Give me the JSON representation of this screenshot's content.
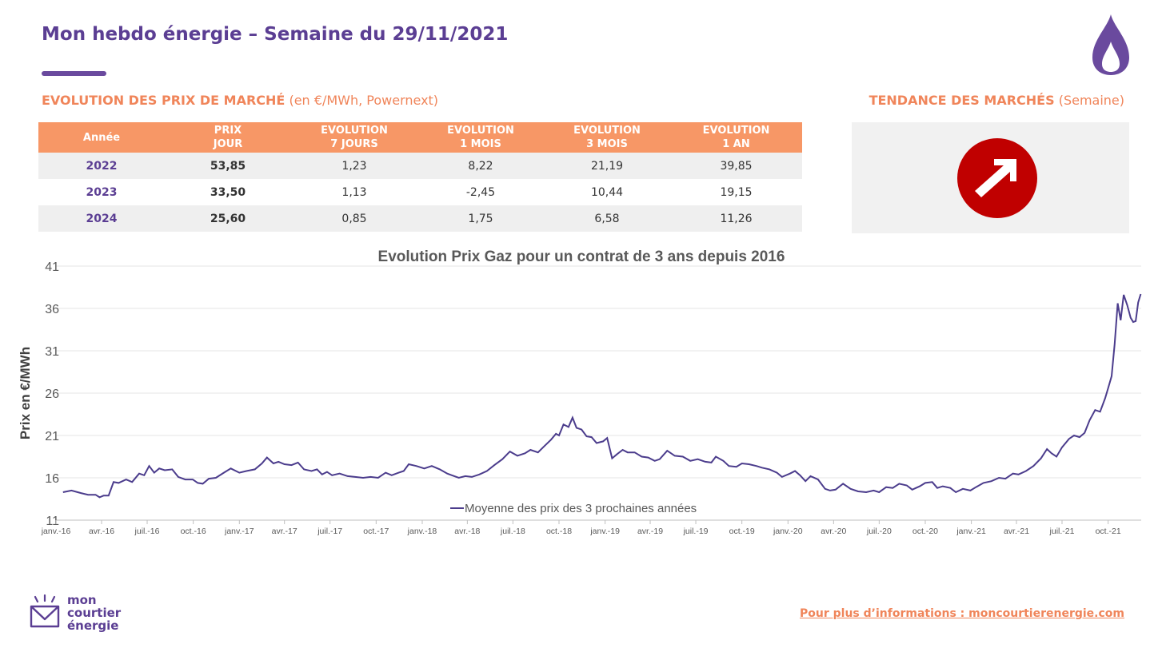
{
  "header": {
    "title": "Mon hebdo énergie – Semaine du 29/11/2021"
  },
  "market_section": {
    "title_bold": "EVOLUTION DES PRIX DE MARCHÉ",
    "title_rest": " (en €/MWh, Powernext)"
  },
  "trend_section": {
    "title_bold": "TENDANCE DES MARCHÉS",
    "title_rest": " (Semaine)",
    "icon": "up-right-arrow-icon",
    "icon_color": "#c00000"
  },
  "price_table": {
    "headers": [
      {
        "l1": "Année",
        "l2": ""
      },
      {
        "l1": "PRIX",
        "l2": "JOUR"
      },
      {
        "l1": "EVOLUTION",
        "l2": "7 JOURS"
      },
      {
        "l1": "EVOLUTION",
        "l2": "1 MOIS"
      },
      {
        "l1": "EVOLUTION",
        "l2": "3 MOIS"
      },
      {
        "l1": "EVOLUTION",
        "l2": "1 AN"
      }
    ],
    "rows": [
      [
        "2022",
        "53,85",
        "1,23",
        "8,22",
        "21,19",
        "39,85"
      ],
      [
        "2023",
        "33,50",
        "1,13",
        "-2,45",
        "10,44",
        "19,15"
      ],
      [
        "2024",
        "25,60",
        "0,85",
        "1,75",
        "6,58",
        "11,26"
      ]
    ]
  },
  "chart_data": {
    "type": "line",
    "title": "Evolution Prix Gaz pour un contrat de 3 ans depuis 2016",
    "ylabel": "Prix en €/MWh",
    "xlabel": "",
    "ylim": [
      11,
      41
    ],
    "yticks": [
      "41",
      "36",
      "31",
      "26",
      "21",
      "16",
      "11"
    ],
    "xlim": [
      "2016-01-01",
      "2021-12-06"
    ],
    "xtick_labels": [
      "janv.-16",
      "avr.-16",
      "juil.-16",
      "oct.-16",
      "janv.-17",
      "avr.-17",
      "juil.-17",
      "oct.-17",
      "janv.-18",
      "avr.-18",
      "juil.-18",
      "oct.-18",
      "janv.-19",
      "avr.-19",
      "juil.-19",
      "oct.-19",
      "janv.-20",
      "avr.-20",
      "juil.-20",
      "oct.-20",
      "janv.-21",
      "avr.-21",
      "juil.-21",
      "oct.-21"
    ],
    "xtick_dates": [
      "2016-01-01",
      "2016-04-01",
      "2016-07-01",
      "2016-10-01",
      "2017-01-01",
      "2017-04-01",
      "2017-07-01",
      "2017-10-01",
      "2018-01-01",
      "2018-04-01",
      "2018-07-01",
      "2018-10-01",
      "2019-01-01",
      "2019-04-01",
      "2019-07-01",
      "2019-10-01",
      "2020-01-01",
      "2020-04-01",
      "2020-07-01",
      "2020-10-01",
      "2021-01-01",
      "2021-04-01",
      "2021-07-01",
      "2021-10-01"
    ],
    "grid": true,
    "legend": {
      "position": "bottom-center",
      "entries": [
        "Moyenne des prix des 3 prochaines années"
      ]
    },
    "series": [
      {
        "name": "Moyenne des prix des 3 prochaines années",
        "color": "#4b3c8c",
        "points": [
          [
            "2016-01-15",
            14.3
          ],
          [
            "2016-02-01",
            14.5
          ],
          [
            "2016-02-20",
            14.2
          ],
          [
            "2016-03-05",
            14.0
          ],
          [
            "2016-03-20",
            14.0
          ],
          [
            "2016-03-28",
            13.7
          ],
          [
            "2016-04-05",
            13.9
          ],
          [
            "2016-04-15",
            13.9
          ],
          [
            "2016-04-25",
            15.5
          ],
          [
            "2016-05-05",
            15.4
          ],
          [
            "2016-05-20",
            15.8
          ],
          [
            "2016-06-01",
            15.5
          ],
          [
            "2016-06-15",
            16.5
          ],
          [
            "2016-06-25",
            16.3
          ],
          [
            "2016-07-05",
            17.4
          ],
          [
            "2016-07-15",
            16.6
          ],
          [
            "2016-07-25",
            17.1
          ],
          [
            "2016-08-05",
            16.9
          ],
          [
            "2016-08-20",
            17.0
          ],
          [
            "2016-09-01",
            16.1
          ],
          [
            "2016-09-15",
            15.8
          ],
          [
            "2016-09-30",
            15.8
          ],
          [
            "2016-10-10",
            15.4
          ],
          [
            "2016-10-20",
            15.3
          ],
          [
            "2016-11-01",
            15.9
          ],
          [
            "2016-11-15",
            16.0
          ],
          [
            "2016-12-01",
            16.6
          ],
          [
            "2016-12-15",
            17.1
          ],
          [
            "2017-01-01",
            16.6
          ],
          [
            "2017-01-15",
            16.8
          ],
          [
            "2017-02-01",
            17.0
          ],
          [
            "2017-02-15",
            17.7
          ],
          [
            "2017-02-25",
            18.4
          ],
          [
            "2017-03-10",
            17.7
          ],
          [
            "2017-03-20",
            17.9
          ],
          [
            "2017-04-01",
            17.6
          ],
          [
            "2017-04-15",
            17.5
          ],
          [
            "2017-04-28",
            17.8
          ],
          [
            "2017-05-10",
            17.0
          ],
          [
            "2017-05-25",
            16.8
          ],
          [
            "2017-06-05",
            17.0
          ],
          [
            "2017-06-15",
            16.4
          ],
          [
            "2017-06-25",
            16.7
          ],
          [
            "2017-07-05",
            16.3
          ],
          [
            "2017-07-20",
            16.5
          ],
          [
            "2017-08-05",
            16.2
          ],
          [
            "2017-08-20",
            16.1
          ],
          [
            "2017-09-05",
            16.0
          ],
          [
            "2017-09-20",
            16.1
          ],
          [
            "2017-10-05",
            16.0
          ],
          [
            "2017-10-20",
            16.6
          ],
          [
            "2017-11-01",
            16.3
          ],
          [
            "2017-11-15",
            16.6
          ],
          [
            "2017-11-25",
            16.8
          ],
          [
            "2017-12-05",
            17.6
          ],
          [
            "2017-12-20",
            17.4
          ],
          [
            "2018-01-05",
            17.1
          ],
          [
            "2018-01-20",
            17.4
          ],
          [
            "2018-02-05",
            17.0
          ],
          [
            "2018-02-20",
            16.5
          ],
          [
            "2018-03-01",
            16.3
          ],
          [
            "2018-03-15",
            16.0
          ],
          [
            "2018-03-28",
            16.2
          ],
          [
            "2018-04-10",
            16.1
          ],
          [
            "2018-04-25",
            16.4
          ],
          [
            "2018-05-10",
            16.8
          ],
          [
            "2018-05-25",
            17.5
          ],
          [
            "2018-06-10",
            18.2
          ],
          [
            "2018-06-25",
            19.1
          ],
          [
            "2018-07-10",
            18.6
          ],
          [
            "2018-07-25",
            18.9
          ],
          [
            "2018-08-05",
            19.3
          ],
          [
            "2018-08-20",
            19.0
          ],
          [
            "2018-09-01",
            19.7
          ],
          [
            "2018-09-15",
            20.5
          ],
          [
            "2018-09-25",
            21.2
          ],
          [
            "2018-10-01",
            21.0
          ],
          [
            "2018-10-10",
            22.3
          ],
          [
            "2018-10-20",
            22.0
          ],
          [
            "2018-10-28",
            23.1
          ],
          [
            "2018-11-05",
            21.9
          ],
          [
            "2018-11-15",
            21.7
          ],
          [
            "2018-11-25",
            20.9
          ],
          [
            "2018-12-05",
            20.8
          ],
          [
            "2018-12-15",
            20.1
          ],
          [
            "2018-12-28",
            20.3
          ],
          [
            "2019-01-05",
            20.7
          ],
          [
            "2019-01-15",
            18.3
          ],
          [
            "2019-01-25",
            18.8
          ],
          [
            "2019-02-05",
            19.3
          ],
          [
            "2019-02-15",
            19.0
          ],
          [
            "2019-03-01",
            19.0
          ],
          [
            "2019-03-15",
            18.5
          ],
          [
            "2019-03-28",
            18.4
          ],
          [
            "2019-04-10",
            18.0
          ],
          [
            "2019-04-20",
            18.2
          ],
          [
            "2019-05-05",
            19.2
          ],
          [
            "2019-05-20",
            18.6
          ],
          [
            "2019-06-05",
            18.5
          ],
          [
            "2019-06-20",
            18.0
          ],
          [
            "2019-07-05",
            18.2
          ],
          [
            "2019-07-20",
            17.9
          ],
          [
            "2019-08-01",
            17.8
          ],
          [
            "2019-08-10",
            18.5
          ],
          [
            "2019-08-25",
            18.0
          ],
          [
            "2019-09-05",
            17.4
          ],
          [
            "2019-09-20",
            17.3
          ],
          [
            "2019-10-01",
            17.7
          ],
          [
            "2019-10-15",
            17.6
          ],
          [
            "2019-10-30",
            17.4
          ],
          [
            "2019-11-10",
            17.2
          ],
          [
            "2019-11-25",
            17.0
          ],
          [
            "2019-12-10",
            16.6
          ],
          [
            "2019-12-20",
            16.1
          ],
          [
            "2020-01-05",
            16.5
          ],
          [
            "2020-01-15",
            16.8
          ],
          [
            "2020-01-25",
            16.3
          ],
          [
            "2020-02-05",
            15.6
          ],
          [
            "2020-02-15",
            16.2
          ],
          [
            "2020-03-01",
            15.8
          ],
          [
            "2020-03-15",
            14.7
          ],
          [
            "2020-03-25",
            14.5
          ],
          [
            "2020-04-05",
            14.6
          ],
          [
            "2020-04-20",
            15.3
          ],
          [
            "2020-05-05",
            14.7
          ],
          [
            "2020-05-20",
            14.4
          ],
          [
            "2020-06-05",
            14.3
          ],
          [
            "2020-06-20",
            14.5
          ],
          [
            "2020-07-01",
            14.3
          ],
          [
            "2020-07-15",
            14.9
          ],
          [
            "2020-07-28",
            14.8
          ],
          [
            "2020-08-10",
            15.3
          ],
          [
            "2020-08-25",
            15.1
          ],
          [
            "2020-09-05",
            14.6
          ],
          [
            "2020-09-20",
            15.0
          ],
          [
            "2020-10-01",
            15.4
          ],
          [
            "2020-10-15",
            15.5
          ],
          [
            "2020-10-25",
            14.8
          ],
          [
            "2020-11-05",
            15.0
          ],
          [
            "2020-11-20",
            14.8
          ],
          [
            "2020-12-01",
            14.3
          ],
          [
            "2020-12-15",
            14.7
          ],
          [
            "2020-12-30",
            14.5
          ],
          [
            "2021-01-10",
            14.9
          ],
          [
            "2021-01-25",
            15.4
          ],
          [
            "2021-02-10",
            15.6
          ],
          [
            "2021-02-25",
            16.0
          ],
          [
            "2021-03-10",
            15.9
          ],
          [
            "2021-03-25",
            16.5
          ],
          [
            "2021-04-05",
            16.4
          ],
          [
            "2021-04-20",
            16.8
          ],
          [
            "2021-05-05",
            17.4
          ],
          [
            "2021-05-20",
            18.3
          ],
          [
            "2021-06-01",
            19.4
          ],
          [
            "2021-06-10",
            18.9
          ],
          [
            "2021-06-20",
            18.5
          ],
          [
            "2021-07-01",
            19.6
          ],
          [
            "2021-07-15",
            20.6
          ],
          [
            "2021-07-25",
            21.0
          ],
          [
            "2021-08-05",
            20.8
          ],
          [
            "2021-08-15",
            21.3
          ],
          [
            "2021-08-25",
            22.8
          ],
          [
            "2021-09-05",
            24.0
          ],
          [
            "2021-09-15",
            23.8
          ],
          [
            "2021-09-25",
            25.4
          ],
          [
            "2021-10-01",
            26.6
          ],
          [
            "2021-10-08",
            28.0
          ],
          [
            "2021-10-14",
            31.8
          ],
          [
            "2021-10-20",
            36.6
          ],
          [
            "2021-10-26",
            34.6
          ],
          [
            "2021-11-01",
            37.6
          ],
          [
            "2021-11-08",
            36.4
          ],
          [
            "2021-11-15",
            34.9
          ],
          [
            "2021-11-20",
            34.4
          ],
          [
            "2021-11-25",
            34.5
          ],
          [
            "2021-11-30",
            36.7
          ],
          [
            "2021-12-05",
            37.7
          ]
        ]
      }
    ]
  },
  "footer": {
    "logo_lines": [
      "mon",
      "courtier",
      "énergie"
    ],
    "link_text": "Pour plus d’informations : moncourtierenergie.com"
  }
}
